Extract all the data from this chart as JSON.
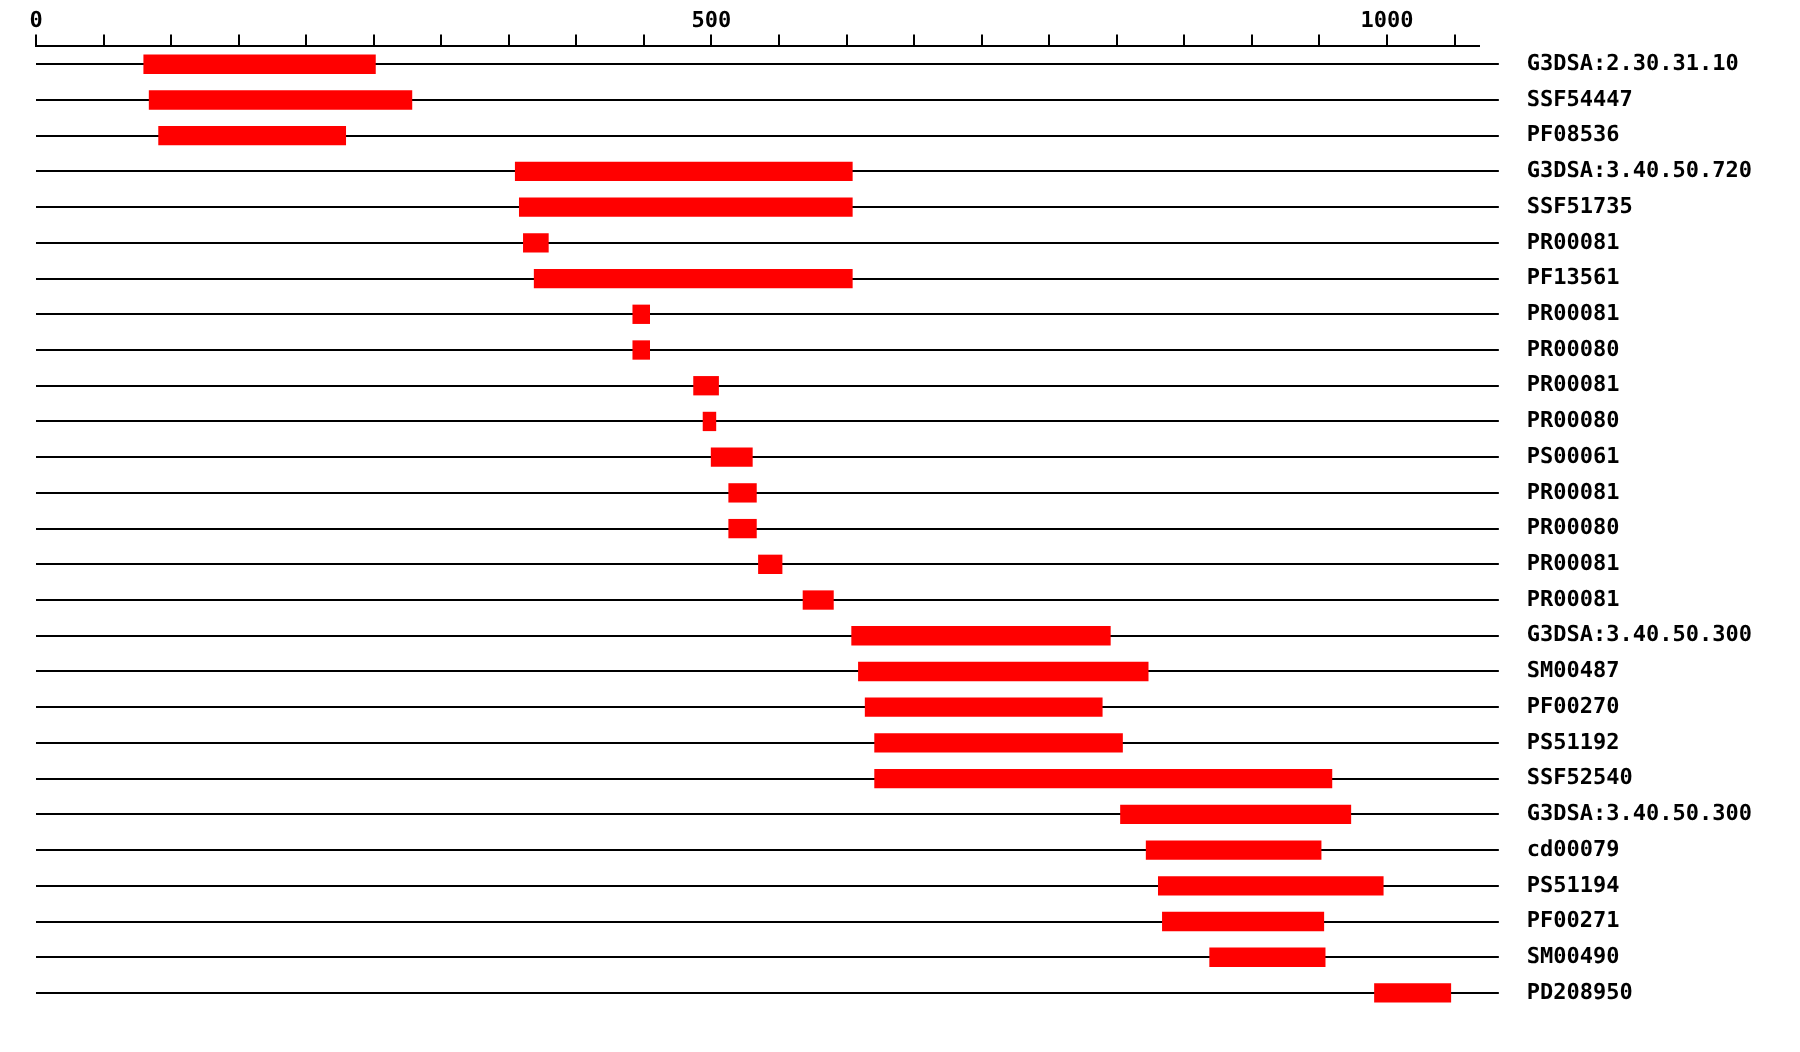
{
  "chart_data": {
    "type": "bar",
    "orientation": "horizontal",
    "grid": "y",
    "legend": false,
    "categories": [
      "G3DSA:2.30.31.10",
      "SSF54447",
      "PF08536",
      "G3DSA:3.40.50.720",
      "SSF51735",
      "PR00081",
      "PF13561",
      "PR00081",
      "PR00080",
      "PR00081",
      "PR00080",
      "PS00061",
      "PR00081",
      "PR00080",
      "PR00081",
      "PR00081",
      "G3DSA:3.40.50.300",
      "SM00487",
      "PF00270",
      "PS51192",
      "SSF52540",
      "G3DSA:3.40.50.300",
      "cd00079",
      "PS51194",
      "PF00271",
      "SM00490",
      "PD208950"
    ],
    "base": [
      80,
      84,
      91,
      355,
      358,
      361,
      369,
      442,
      442,
      487,
      494,
      500,
      513,
      513,
      535,
      568,
      604,
      609,
      614,
      621,
      621,
      803,
      822,
      831,
      834,
      869,
      991
    ],
    "values": [
      171,
      194,
      138,
      249,
      246,
      18,
      235,
      12,
      12,
      18,
      9,
      30,
      20,
      20,
      17,
      22,
      191,
      214,
      175,
      183,
      338,
      170,
      129,
      166,
      119,
      85,
      56
    ],
    "color": "#ff0000",
    "xlim": [
      0,
      1068
    ],
    "xticks": [
      0,
      {
        "value": 50,
        "label": null
      },
      {
        "value": 100,
        "label": null
      },
      {
        "value": 150,
        "label": null
      },
      {
        "value": 200,
        "label": null
      },
      {
        "value": 250,
        "label": null
      },
      {
        "value": 300,
        "label": null
      },
      {
        "value": 350,
        "label": null
      },
      {
        "value": 400,
        "label": null
      },
      {
        "value": 450,
        "label": null
      },
      500,
      {
        "value": 550,
        "label": null
      },
      {
        "value": 600,
        "label": null
      },
      {
        "value": 650,
        "label": null
      },
      {
        "value": 700,
        "label": null
      },
      {
        "value": 750,
        "label": null
      },
      {
        "value": 800,
        "label": null
      },
      {
        "value": 850,
        "label": null
      },
      {
        "value": 900,
        "label": null
      },
      {
        "value": 950,
        "label": null
      },
      1000,
      {
        "value": 1050,
        "label": null
      }
    ]
  }
}
